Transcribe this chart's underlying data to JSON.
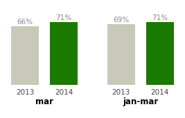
{
  "groups": [
    {
      "label": "mar",
      "bars": [
        {
          "year": "2013",
          "value": 66,
          "color": "#c8c9b8"
        },
        {
          "year": "2014",
          "value": 71,
          "color": "#1a7a00"
        }
      ]
    },
    {
      "label": "jan-mar",
      "bars": [
        {
          "year": "2013",
          "value": 69,
          "color": "#c8c9b8"
        },
        {
          "year": "2014",
          "value": 71,
          "color": "#1a7a00"
        }
      ]
    }
  ],
  "background_color": "#ffffff",
  "bar_width": 0.72,
  "ylim": [
    0,
    80
  ],
  "label_fontsize": 7.5,
  "pct_fontsize": 7.5,
  "group_label_fontsize": 8.5,
  "pct_color": "#888888",
  "tick_color": "#444444"
}
